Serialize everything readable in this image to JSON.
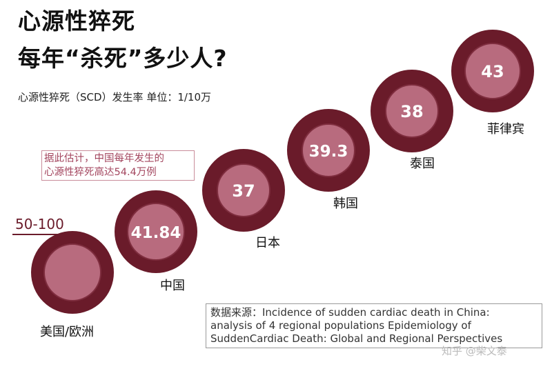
{
  "title": {
    "line1": "心源性猝死",
    "line2": "每年“杀死”多少人?"
  },
  "subtitle": "心源性猝死（SCD）发生率   单位：1/10万",
  "callout": {
    "line1": "据此估计，中国每年发生的",
    "line2": "心源性猝死高达54.4万例"
  },
  "range_label": "50-100",
  "source": {
    "line1": "数据来源：Incidence of sudden cardiac death in China:",
    "line2": "analysis of 4 regional populations Epidemiology of",
    "line3": "SuddenCardiac Death: Global and Regional Perspectives"
  },
  "watermark": "知乎 @柴文泰",
  "colors": {
    "outer": "#6a1b2a",
    "inner": "#b86b7e",
    "inner_border": "#7e2d3e"
  },
  "chart_data": {
    "type": "bubble",
    "title": "心源性猝死 每年“杀死”多少人?",
    "unit": "1/10万",
    "categories": [
      "美国/欧洲",
      "中国",
      "日本",
      "韩国",
      "泰国",
      "菲律宾"
    ],
    "values": [
      null,
      41.84,
      37,
      39.3,
      38,
      43
    ],
    "value_labels": [
      "",
      "41.84",
      "37",
      "39.3",
      "38",
      "43"
    ],
    "range_annotations": [
      {
        "category": "美国/欧洲",
        "label": "50-100",
        "min": 50,
        "max": 100
      }
    ]
  }
}
